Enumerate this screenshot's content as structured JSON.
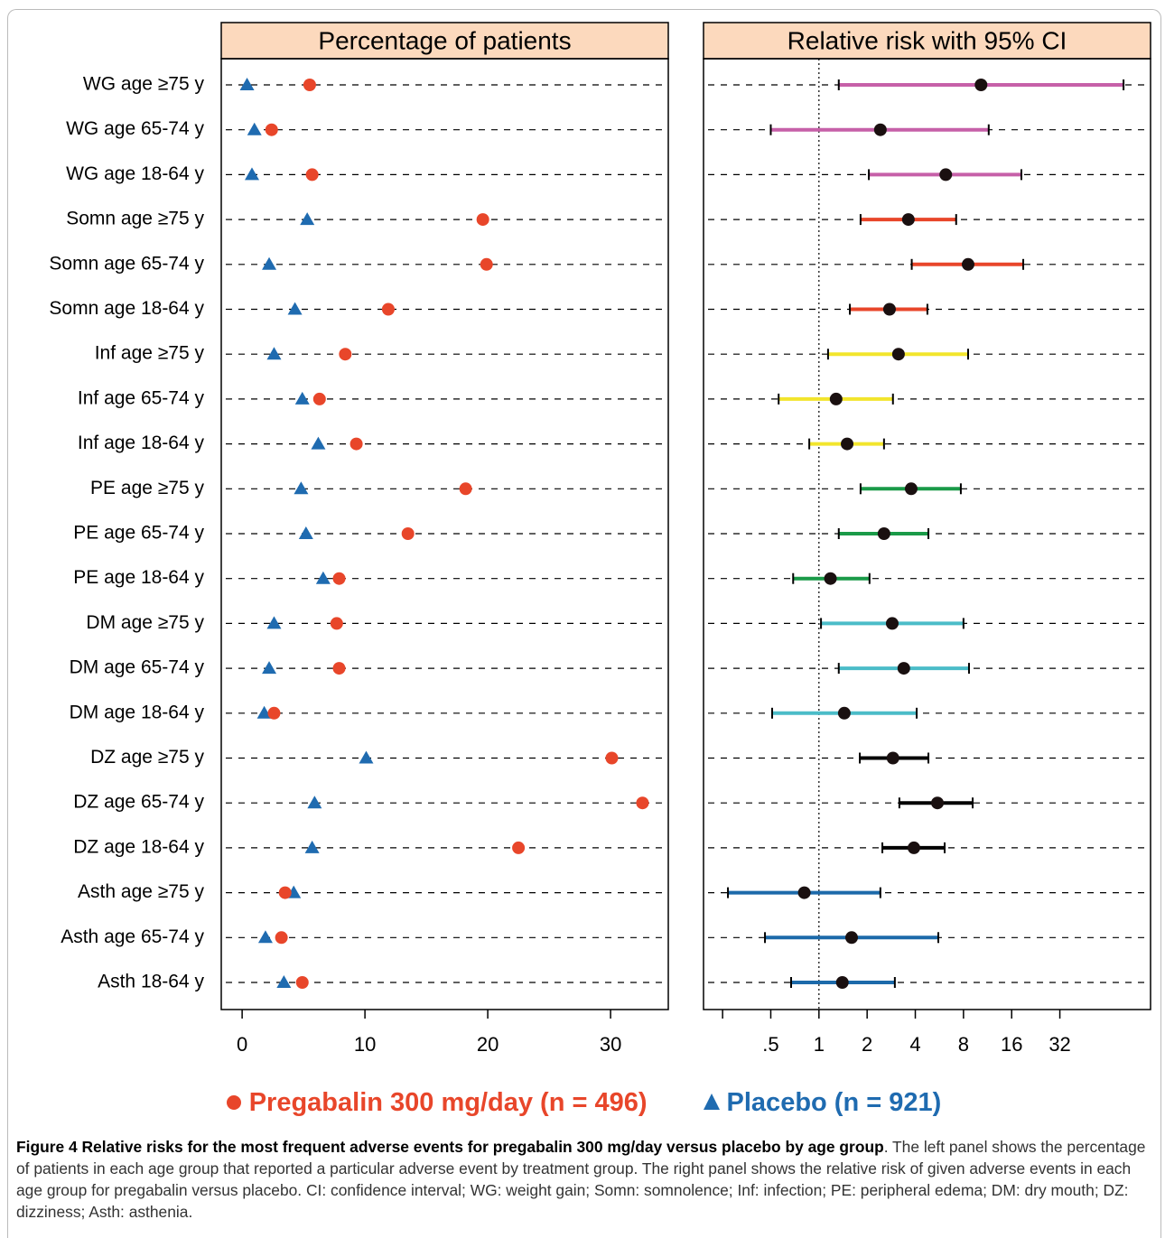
{
  "chart_data": [
    {
      "type": "dot",
      "title": "Percentage of patients",
      "categories": [
        "WG age ≥75 y",
        "WG age 65-74 y",
        "WG age 18-64 y",
        "Somn age ≥75 y",
        "Somn age 65-74 y",
        "Somn age 18-64 y",
        "Inf age ≥75 y",
        "Inf age 65-74 y",
        "Inf age 18-64 y",
        "PE age ≥75 y",
        "PE age 65-74 y",
        "PE age 18-64 y",
        "DM age ≥75 y",
        "DM age 65-74 y",
        "DM age 18-64 y",
        "DZ age ≥75 y",
        "DZ age 65-74 y",
        "DZ age 18-64 y",
        "Asth age ≥75 y",
        "Asth age 65-74 y",
        "Asth 18-64 y"
      ],
      "series": [
        {
          "name": "Pregabalin 300 mg/day (n = 496)",
          "color": "#e8462a",
          "marker": "circle",
          "values": [
            5.5,
            2.4,
            5.7,
            19.6,
            19.9,
            11.9,
            8.4,
            6.3,
            9.3,
            18.2,
            13.5,
            7.9,
            7.7,
            7.9,
            2.6,
            30.1,
            32.6,
            22.5,
            3.5,
            3.2,
            4.9
          ]
        },
        {
          "name": "Placebo (n = 921)",
          "color": "#1f6bb0",
          "marker": "triangle",
          "values": [
            0.4,
            1.0,
            0.8,
            5.3,
            2.2,
            4.3,
            2.6,
            4.9,
            6.2,
            4.8,
            5.2,
            6.6,
            2.6,
            2.2,
            1.8,
            10.1,
            5.9,
            5.7,
            4.2,
            1.9,
            3.4
          ]
        }
      ],
      "xlim": [
        -1.7,
        34.7
      ],
      "xticks": [
        0,
        10,
        20,
        30
      ]
    },
    {
      "type": "forest",
      "title": "Relative risk with 95% CI",
      "xscale": "log",
      "values": [
        10.3,
        2.42,
        6.2,
        3.62,
        8.55,
        2.76,
        3.14,
        1.28,
        1.5,
        3.77,
        2.55,
        1.18,
        2.87,
        3.39,
        1.44,
        2.9,
        5.5,
        3.92,
        0.81,
        1.6,
        1.4
      ],
      "lower": [
        1.33,
        0.5,
        2.05,
        1.82,
        3.8,
        1.56,
        1.14,
        0.56,
        0.87,
        1.82,
        1.33,
        0.69,
        1.03,
        1.33,
        0.51,
        1.8,
        3.18,
        2.49,
        0.27,
        0.46,
        0.67
      ],
      "upper": [
        80,
        11.5,
        18.4,
        7.2,
        18.9,
        4.76,
        8.55,
        2.9,
        2.55,
        7.7,
        4.83,
        2.07,
        8.0,
        8.66,
        4.08,
        4.83,
        9.13,
        6.1,
        2.42,
        5.57,
        2.98
      ],
      "colors": [
        "#c660a8",
        "#c660a8",
        "#c660a8",
        "#e8462a",
        "#e8462a",
        "#e8462a",
        "#f2e52c",
        "#f2e52c",
        "#f2e52c",
        "#1a9a48",
        "#1a9a48",
        "#1a9a48",
        "#4bbcc8",
        "#4bbcc8",
        "#4bbcc8",
        "#000000",
        "#000000",
        "#000000",
        "#1c6aaa",
        "#1c6aaa",
        "#1c6aaa"
      ],
      "reference_line": 1,
      "xlim": [
        0.19,
        118
      ],
      "xticks": [
        {
          "value": 0.5,
          "label": ".5"
        },
        1,
        2,
        4,
        8,
        16,
        32
      ],
      "minor_xticks": [
        0.25
      ]
    }
  ],
  "caption": {
    "label": "Figure 4",
    "title": "Relative risks for the most frequent adverse events for pregabalin 300 mg/day versus placebo by age group",
    "text": ". The left panel shows the percentage of patients in each age group that reported a particular adverse event by treatment group. The right panel shows the relative risk of given adverse events in each age group for pregabalin versus placebo. CI: confidence interval; WG: weight gain; Somn: somnolence; Inf: infection; PE: peripheral edema; DM: dry mouth; DZ: dizziness; Asth: asthenia."
  }
}
